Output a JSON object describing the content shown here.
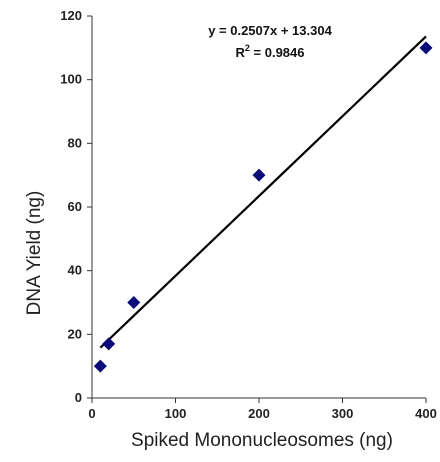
{
  "chart_data": {
    "type": "scatter",
    "xlabel": "Spiked Mononucleosomes (ng)",
    "ylabel": "DNA Yield (ng)",
    "xlim": [
      0,
      400
    ],
    "ylim": [
      0,
      120
    ],
    "xticks": [
      0,
      100,
      200,
      300,
      400
    ],
    "yticks": [
      0,
      20,
      40,
      60,
      80,
      100,
      120
    ],
    "series": [
      {
        "x": [
          10,
          20,
          50,
          200,
          400
        ],
        "y": [
          10,
          17,
          30,
          70,
          110
        ],
        "marker": "diamond",
        "color": "#0a0a7a"
      }
    ],
    "trendline": {
      "slope": 0.2507,
      "intercept": 13.304,
      "color": "#000000"
    },
    "equation": "y = 0.2507x + 13.304",
    "r_squared_label": "R",
    "r_squared_sup": "2",
    "r_squared_value": " = 0.9846",
    "grid": false,
    "legend": "none"
  }
}
